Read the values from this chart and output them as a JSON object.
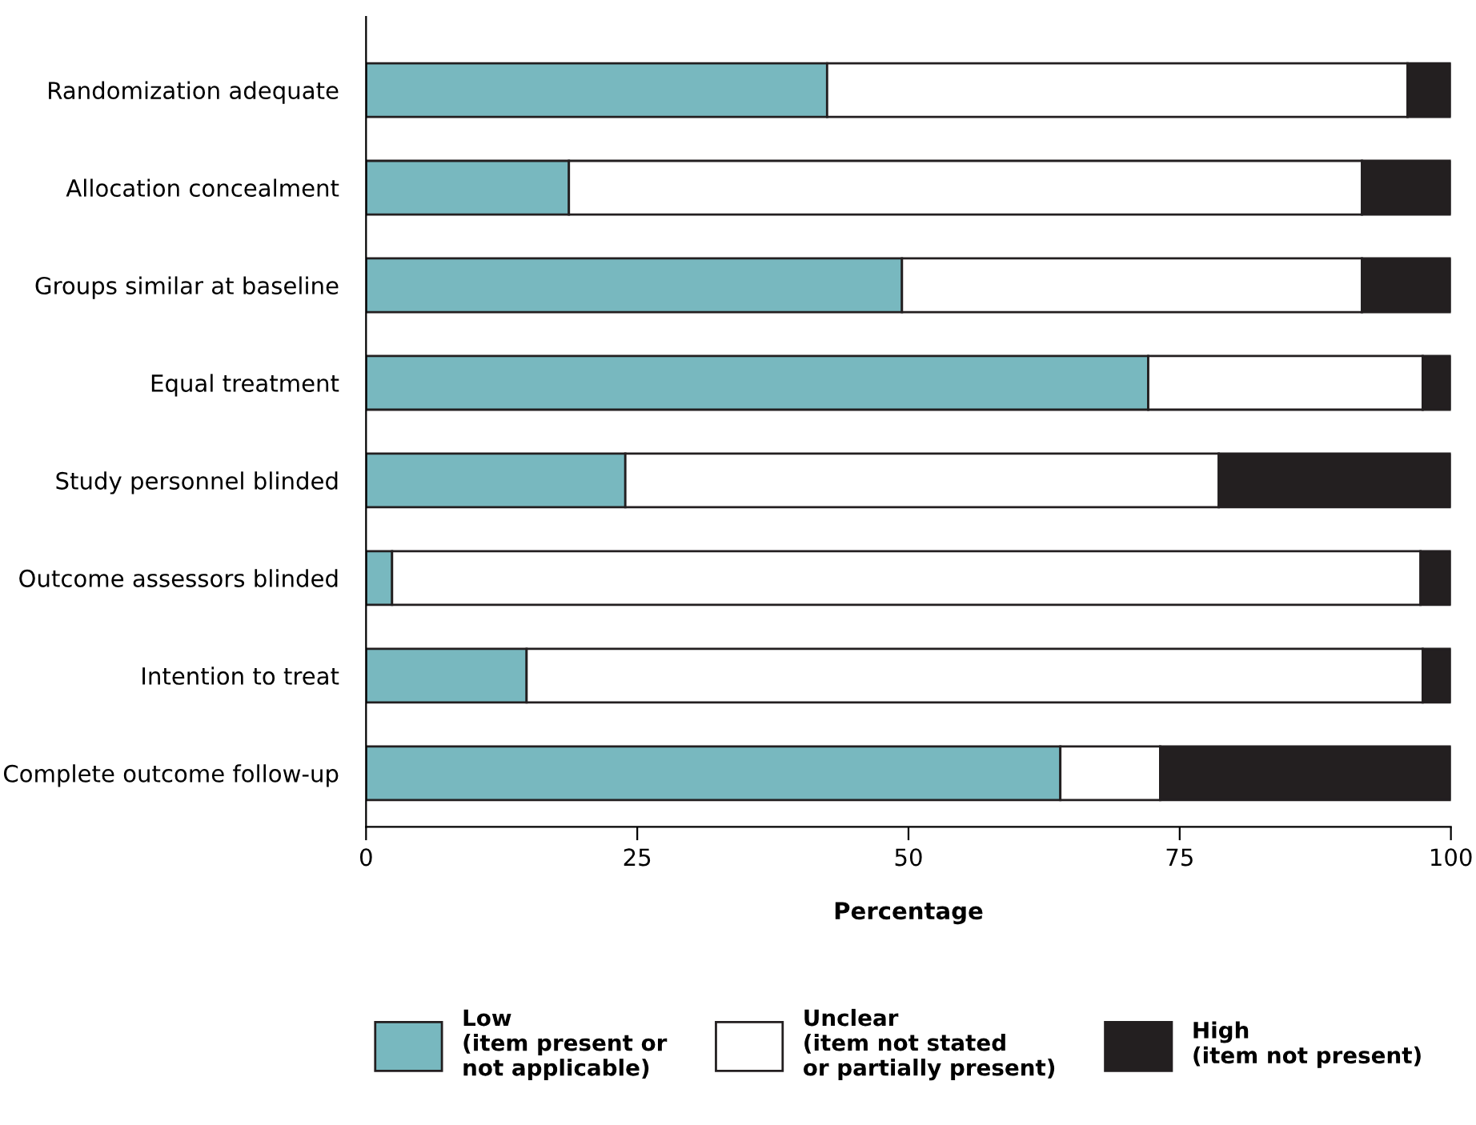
{
  "chart_data": {
    "type": "bar",
    "orientation": "horizontal",
    "stacked": true,
    "xlabel": "Percentage",
    "categories": [
      "Randomization adequate",
      "Allocation concealment",
      "Groups similar at baseline",
      "Equal treatment",
      "Study personnel blinded",
      "Outcome assessors blinded",
      "Intention to treat",
      "Complete outcome follow-up"
    ],
    "series": [
      {
        "name": "Low\n(item present or\nnot applicable)",
        "color": "#78b8bf",
        "values": [
          42.5,
          18.7,
          49.4,
          72.1,
          23.9,
          2.4,
          14.8,
          64.0
        ]
      },
      {
        "name": "Unclear\n(item not stated\nor partially present)",
        "color": "#ffffff",
        "values": [
          53.5,
          73.1,
          42.4,
          25.3,
          54.7,
          94.8,
          82.6,
          9.2
        ]
      },
      {
        "name": "High\n(item not present)",
        "color": "#231f20",
        "values": [
          4.0,
          8.2,
          8.2,
          2.6,
          21.4,
          2.8,
          2.6,
          26.8
        ]
      }
    ],
    "xlim": [
      0,
      100
    ],
    "xticks": [
      0,
      25,
      50,
      75,
      100
    ],
    "grid": false,
    "legend": "bottom"
  }
}
